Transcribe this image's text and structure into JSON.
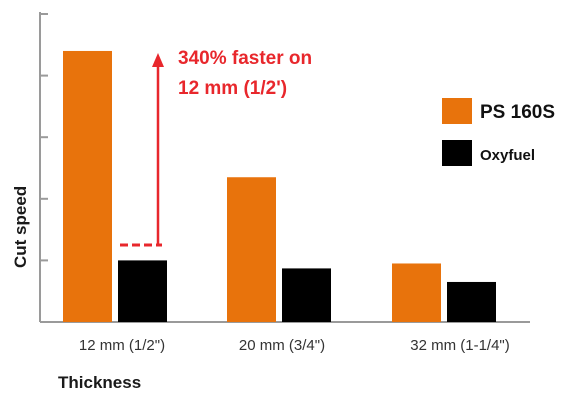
{
  "chart_data": {
    "type": "bar",
    "categories": [
      "12 mm  (1/2\")",
      "20 mm  (3/4\")",
      "32 mm  (1-1/4\")"
    ],
    "series": [
      {
        "name": "PS 160S",
        "color": "#e8730c",
        "values": [
          4.4,
          2.35,
          0.95
        ]
      },
      {
        "name": "Oxyfuel",
        "color": "#000000",
        "values": [
          1.0,
          0.87,
          0.65
        ]
      }
    ],
    "xlabel": "Thickness",
    "ylabel": "Cut speed",
    "ylim": [
      0,
      5
    ],
    "grid": false,
    "legend_position": "right",
    "annotation": {
      "lines": [
        "340% faster on",
        "12 mm (1/2')"
      ],
      "color": "#e8272c",
      "from_value": 1.25,
      "to_value": 4.4
    },
    "ytick_count": 5
  }
}
